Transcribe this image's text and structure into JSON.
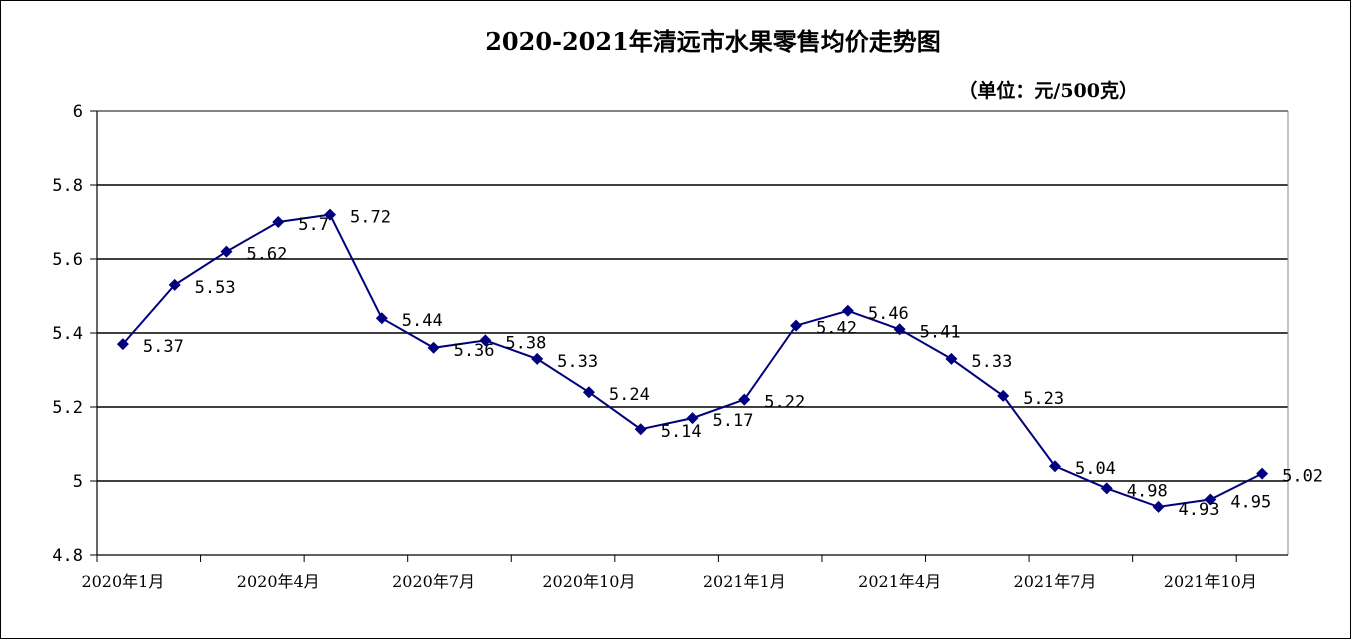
{
  "chart_data": {
    "type": "line",
    "title": "2020-2021年清远市水果零售均价走势图",
    "unit": "（单位：元/500克）",
    "ylim": [
      4.8,
      6
    ],
    "yticks": [
      "4.8",
      "5",
      "5.2",
      "5.4",
      "5.6",
      "5.8",
      "6"
    ],
    "grid": true,
    "x_labels": [
      "2020年1月",
      "2020年4月",
      "2020年7月",
      "2020年10月",
      "2021年1月",
      "2021年4月",
      "2021年7月",
      "2021年10月"
    ],
    "x_label_positions": [
      0,
      3,
      6,
      9,
      12,
      15,
      18,
      21
    ],
    "line_color": "#00007f",
    "series": [
      {
        "values": [
          5.37,
          5.53,
          5.62,
          5.7,
          5.72,
          5.44,
          5.36,
          5.38,
          5.33,
          5.24,
          5.14,
          5.17,
          5.22,
          5.42,
          5.46,
          5.41,
          5.33,
          5.23,
          5.04,
          4.98,
          4.93,
          4.95,
          5.02
        ],
        "labels": [
          "5.37",
          "5.53",
          "5.62",
          "5.7",
          "5.72",
          "5.44",
          "5.36",
          "5.38",
          "5.33",
          "5.24",
          "5.14",
          "5.17",
          "5.22",
          "5.42",
          "5.46",
          "5.41",
          "5.33",
          "5.23",
          "5.04",
          "4.98",
          "4.93",
          "4.95",
          "5.02"
        ]
      }
    ]
  }
}
